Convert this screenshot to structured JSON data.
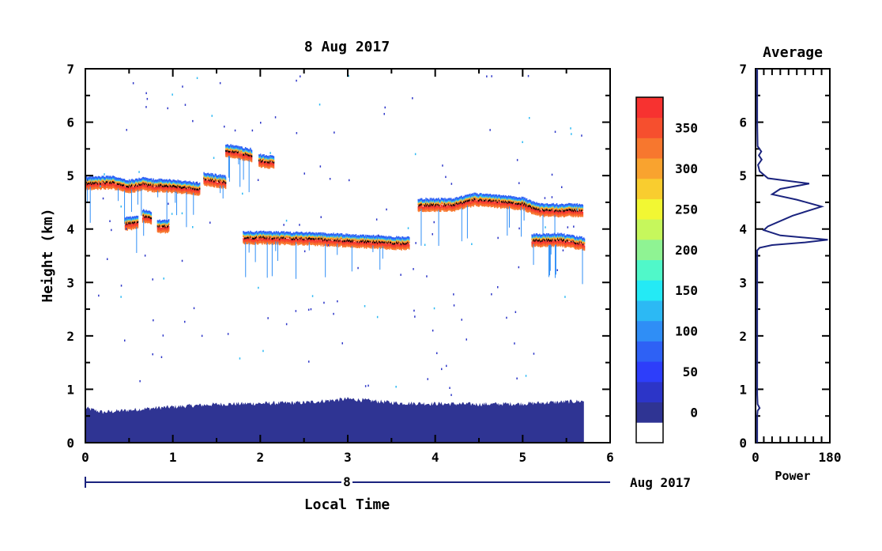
{
  "chart_data": [
    {
      "type": "heatmap",
      "title": "8 Aug 2017",
      "xlabel": "Local Time",
      "ylabel": "Height (km)",
      "xlim": [
        0,
        6
      ],
      "ylim": [
        0,
        7
      ],
      "x_ticks": [
        "0",
        "1",
        "2",
        "3",
        "4",
        "5",
        "6"
      ],
      "y_ticks": [
        "0",
        "1",
        "2",
        "3",
        "4",
        "5",
        "6",
        "7"
      ],
      "date_bar": {
        "day": "8",
        "label": "Aug 2017"
      },
      "data_extent_x": 5.7,
      "surface_layer": {
        "x": [
          0,
          0.2,
          0.8,
          1.5,
          2.5,
          3.0,
          3.6,
          4.5,
          5.0,
          5.7
        ],
        "top_km": [
          0.65,
          0.57,
          0.65,
          0.72,
          0.75,
          0.82,
          0.74,
          0.72,
          0.73,
          0.78
        ]
      },
      "layers": [
        {
          "x": [
            0.0,
            0.3,
            0.5,
            0.7
          ],
          "height_km": [
            4.85,
            4.87,
            4.8,
            4.85
          ]
        },
        {
          "x": [
            0.7,
            1.0,
            1.3
          ],
          "height_km": [
            4.82,
            4.8,
            4.75
          ]
        },
        {
          "x": [
            1.35,
            1.6
          ],
          "height_km": [
            4.93,
            4.88
          ]
        },
        {
          "x": [
            1.6,
            1.9
          ],
          "height_km": [
            5.47,
            5.38
          ]
        },
        {
          "x": [
            1.98,
            2.15
          ],
          "height_km": [
            5.28,
            5.24
          ]
        },
        {
          "x": [
            0.45,
            0.6
          ],
          "height_km": [
            4.1,
            4.12
          ]
        },
        {
          "x": [
            0.65,
            0.75
          ],
          "height_km": [
            4.25,
            4.2
          ]
        },
        {
          "x": [
            0.82,
            0.95
          ],
          "height_km": [
            4.05,
            4.05
          ]
        },
        {
          "x": [
            1.8,
            2.5,
            3.0,
            3.6,
            3.7
          ],
          "height_km": [
            3.84,
            3.82,
            3.78,
            3.73,
            3.73
          ]
        },
        {
          "x": [
            3.8,
            4.2,
            4.45,
            4.8,
            5.0,
            5.2,
            5.4,
            5.6,
            5.68
          ],
          "height_km": [
            4.45,
            4.45,
            4.55,
            4.5,
            4.47,
            4.35,
            4.35,
            4.35,
            4.35
          ]
        },
        {
          "x": [
            5.1,
            5.4,
            5.7
          ],
          "height_km": [
            3.78,
            3.8,
            3.72
          ]
        }
      ]
    },
    {
      "type": "line",
      "title": "Average",
      "xlabel": "Power",
      "xlim": [
        0,
        180
      ],
      "ylim": [
        0,
        7
      ],
      "x_ticks": [
        "0",
        "180"
      ],
      "y_ticks": [
        "0",
        "1",
        "2",
        "3",
        "4",
        "5",
        "6",
        "7"
      ],
      "series": [
        {
          "power": [
            4,
            4,
            5,
            10,
            5,
            4,
            4,
            4,
            4,
            4,
            10,
            40,
            120,
            175,
            60,
            20,
            30,
            90,
            160,
            100,
            40,
            60,
            130,
            30,
            10,
            6,
            15,
            8,
            14,
            5,
            4,
            4
          ],
          "height_km": [
            0,
            0.5,
            0.6,
            0.65,
            0.72,
            0.9,
            2.0,
            3.4,
            3.55,
            3.6,
            3.65,
            3.7,
            3.75,
            3.8,
            3.88,
            3.98,
            4.05,
            4.25,
            4.42,
            4.55,
            4.65,
            4.75,
            4.85,
            4.95,
            5.08,
            5.2,
            5.3,
            5.38,
            5.45,
            5.55,
            6.0,
            7.0
          ]
        }
      ]
    }
  ],
  "colorbar": {
    "colors": [
      "#ffffff",
      "#2f3493",
      "#2c35c8",
      "#2d3efa",
      "#2e61f5",
      "#2f8ef6",
      "#2cb9f4",
      "#24eaf5",
      "#50f8c9",
      "#8ff393",
      "#c6f75c",
      "#f2f733",
      "#f9cd2f",
      "#f9a32f",
      "#f7772e",
      "#f64f2e",
      "#f73230"
    ],
    "tick_labels": [
      "0",
      "50",
      "100",
      "150",
      "200",
      "250",
      "300",
      "350"
    ]
  }
}
